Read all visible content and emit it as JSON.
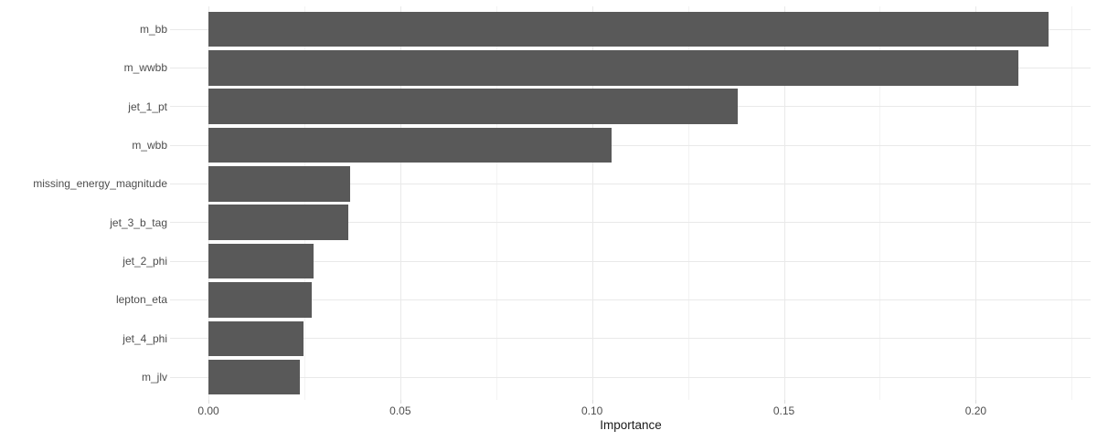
{
  "chart_data": {
    "type": "bar",
    "orientation": "horizontal",
    "title": "",
    "xlabel": "Importance",
    "ylabel": "",
    "categories": [
      "m_bb",
      "m_wwbb",
      "jet_1_pt",
      "m_wbb",
      "missing_energy_magnitude",
      "jet_3_b_tag",
      "jet_2_phi",
      "lepton_eta",
      "jet_4_phi",
      "m_jlv"
    ],
    "values": [
      0.219,
      0.211,
      0.138,
      0.105,
      0.037,
      0.0365,
      0.0274,
      0.0269,
      0.0248,
      0.0238
    ],
    "xlim": [
      0,
      0.23
    ],
    "x_ticks": [
      0,
      0.05,
      0.1,
      0.15,
      0.2
    ],
    "x_tick_labels": [
      "0.00",
      "0.05",
      "0.10",
      "0.15",
      "0.20"
    ],
    "x_minor_ticks": [
      0.025,
      0.075,
      0.125,
      0.175,
      0.225
    ],
    "grid": "on",
    "legend": "none",
    "colors": {
      "bar_fill": "#595959",
      "grid_major": "#e9e9e9",
      "grid_minor": "#f3f3f3",
      "axis_text": "#4d4d4d",
      "axis_title": "#1a1a1a",
      "background": "#ffffff"
    }
  }
}
